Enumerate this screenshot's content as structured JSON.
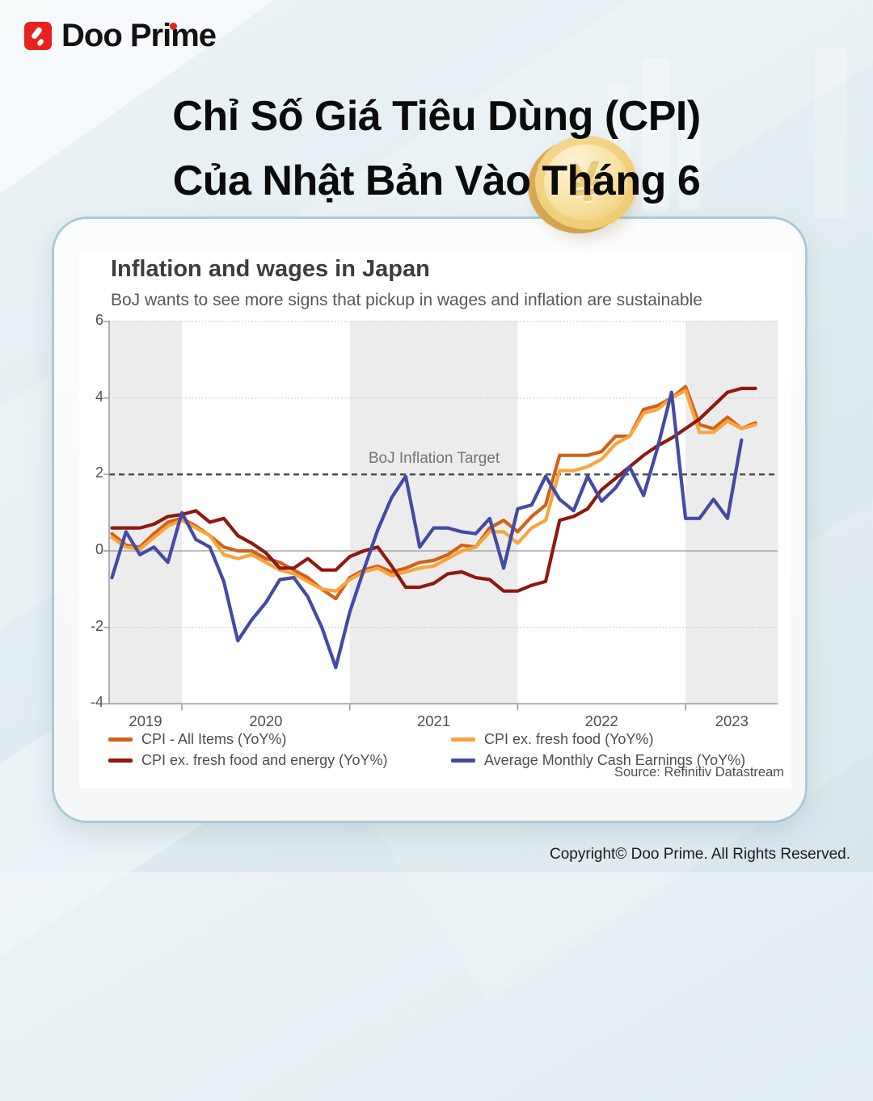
{
  "header": {
    "logo_text": "Doo Prime",
    "title_line1": "Chỉ Số Giá Tiêu Dùng (CPI)",
    "title_line2": "Của Nhật Bản Vào Tháng 6",
    "coin_symbol": "¥"
  },
  "footer": {
    "copyright": "Copyright© Doo Prime. All Rights Reserved."
  },
  "chart": {
    "title": "Inflation and wages in Japan",
    "subtitle": "BoJ wants to see more signs that pickup in wages and inflation are sustainable",
    "target_label": "BoJ Inflation Target",
    "source": "Source: Refinitiv Datastream"
  },
  "chart_data": {
    "type": "line",
    "title": "Inflation and wages in Japan",
    "subtitle": "BoJ wants to see more signs that pickup in wages and inflation are sustainable",
    "x_start": "2019-08",
    "x_end": "2023-06",
    "x_frequency": "monthly",
    "x_tick_labels": [
      "2019",
      "2020",
      "2021",
      "2022",
      "2023"
    ],
    "ylim": [
      -4,
      6
    ],
    "y_ticks": [
      6,
      4,
      2,
      0,
      -2,
      -4
    ],
    "grid": "dotted horizontal, alternating grey year bands",
    "legend_position": "bottom, two columns",
    "target_line": {
      "value": 2,
      "label": "BoJ Inflation Target"
    },
    "colors": {
      "band": "#ececec",
      "axis": "#9a9a9a",
      "grid_dotted": "#c9c9c9",
      "target_dash": "#4a4a4a"
    },
    "series": [
      {
        "name": "CPI - All Items (YoY%)",
        "color": "#d2611b",
        "values": [
          0.45,
          0.15,
          0.1,
          0.45,
          0.75,
          0.85,
          0.65,
          0.4,
          0.1,
          0.0,
          0.0,
          -0.2,
          -0.3,
          -0.5,
          -0.7,
          -1.0,
          -1.25,
          -0.7,
          -0.5,
          -0.4,
          -0.55,
          -0.45,
          -0.3,
          -0.25,
          -0.1,
          0.15,
          0.1,
          0.6,
          0.8,
          0.5,
          0.9,
          1.2,
          2.5,
          2.5,
          2.5,
          2.6,
          3.0,
          3.0,
          3.7,
          3.8,
          4.0,
          4.3,
          3.3,
          3.2,
          3.5,
          3.2,
          3.35
        ]
      },
      {
        "name": "CPI ex. fresh food (YoY%)",
        "color": "#f7a53c",
        "values": [
          0.35,
          0.1,
          0.05,
          0.35,
          0.65,
          0.8,
          0.6,
          0.4,
          -0.1,
          -0.2,
          -0.1,
          -0.3,
          -0.5,
          -0.6,
          -0.8,
          -1.0,
          -1.05,
          -0.75,
          -0.55,
          -0.45,
          -0.65,
          -0.55,
          -0.45,
          -0.4,
          -0.2,
          0.0,
          0.1,
          0.5,
          0.5,
          0.2,
          0.6,
          0.8,
          2.1,
          2.1,
          2.2,
          2.4,
          2.8,
          3.0,
          3.6,
          3.7,
          4.0,
          4.2,
          3.1,
          3.1,
          3.4,
          3.2,
          3.3
        ]
      },
      {
        "name": "CPI ex. fresh food and energy (YoY%)",
        "color": "#8f1810",
        "values": [
          0.6,
          0.6,
          0.6,
          0.7,
          0.9,
          0.95,
          1.05,
          0.75,
          0.85,
          0.4,
          0.2,
          -0.05,
          -0.45,
          -0.45,
          -0.2,
          -0.5,
          -0.5,
          -0.15,
          0.0,
          0.1,
          -0.4,
          -0.95,
          -0.95,
          -0.85,
          -0.6,
          -0.55,
          -0.7,
          -0.75,
          -1.05,
          -1.05,
          -0.9,
          -0.8,
          0.8,
          0.9,
          1.1,
          1.6,
          1.9,
          2.2,
          2.5,
          2.75,
          2.95,
          3.2,
          3.45,
          3.8,
          4.15,
          4.25,
          4.25
        ]
      },
      {
        "name": "Average Monthly Cash Earnings (YoY%)",
        "color": "#444aa4",
        "values": [
          -0.7,
          0.5,
          -0.1,
          0.1,
          -0.3,
          1.0,
          0.3,
          0.1,
          -0.8,
          -2.35,
          -1.8,
          -1.35,
          -0.75,
          -0.7,
          -1.2,
          -2.0,
          -3.05,
          -1.6,
          -0.5,
          0.55,
          1.4,
          1.95,
          0.1,
          0.6,
          0.6,
          0.5,
          0.45,
          0.85,
          -0.45,
          1.1,
          1.2,
          1.95,
          1.35,
          1.05,
          1.95,
          1.3,
          1.65,
          2.2,
          1.45,
          2.7,
          4.15,
          0.85,
          0.85,
          1.35,
          0.85,
          2.9
        ]
      }
    ],
    "source": "Source: Refinitiv Datastream"
  }
}
